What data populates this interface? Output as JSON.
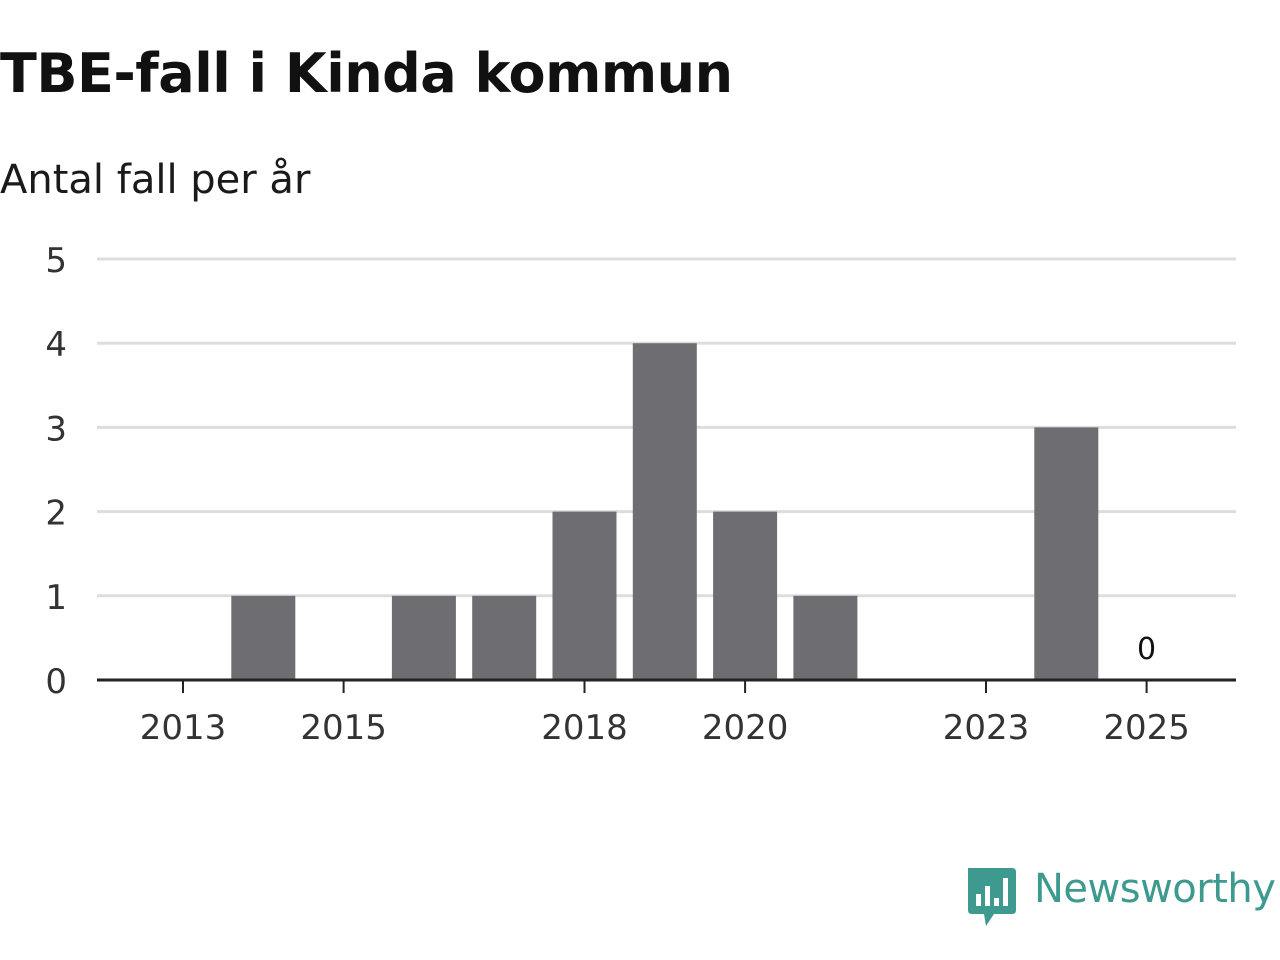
{
  "chart_data": {
    "type": "bar",
    "title": "TBE-fall i Kinda kommun",
    "subtitle": "Antal fall per år",
    "xlabel": "",
    "ylabel": "",
    "categories": [
      2013,
      2014,
      2015,
      2016,
      2017,
      2018,
      2019,
      2020,
      2021,
      2022,
      2023,
      2024,
      2025
    ],
    "values": [
      0,
      1,
      0,
      1,
      1,
      2,
      4,
      2,
      1,
      0,
      0,
      3,
      0
    ],
    "x_ticks": [
      "2013",
      "2015",
      "2018",
      "2020",
      "2023",
      "2025"
    ],
    "y_ticks": [
      "0",
      "1",
      "2",
      "3",
      "4",
      "5"
    ],
    "ylim": [
      0,
      5
    ],
    "grid": true,
    "data_labels": [
      {
        "category": 2025,
        "text": "0"
      }
    ],
    "bar_color": "#6e6d72",
    "grid_color": "#dddddd",
    "axis_color": "#222222"
  },
  "brand": {
    "name": "Newsworthy",
    "icon": "newsworthy-logo-icon",
    "color": "#3e9a8e"
  }
}
